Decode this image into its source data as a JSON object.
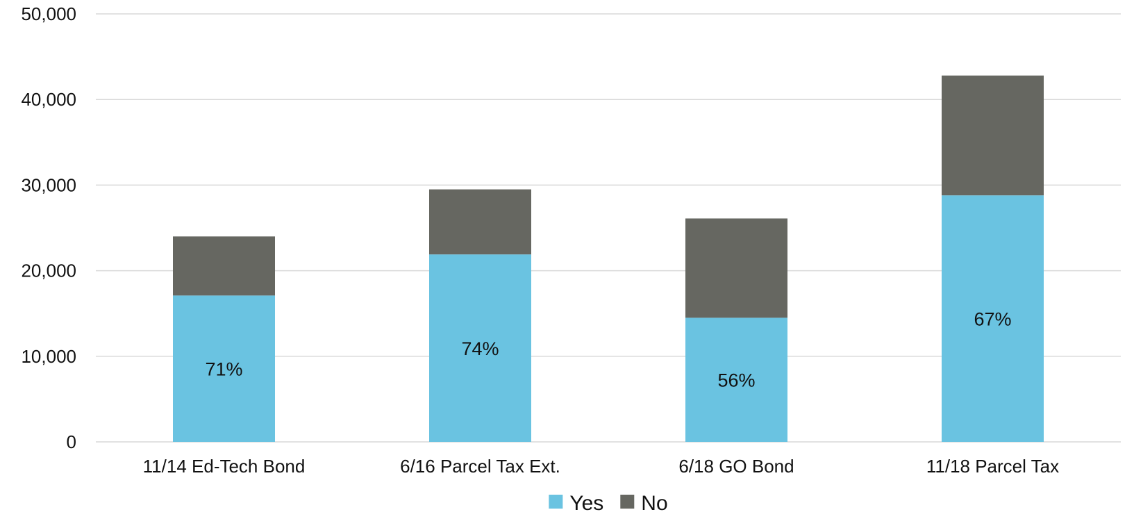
{
  "chart_data": {
    "type": "bar",
    "stacked": true,
    "title": "",
    "xlabel": "",
    "ylabel": "",
    "categories": [
      "11/14 Ed-Tech Bond",
      "6/16 Parcel Tax Ext.",
      "6/18 GO Bond",
      "11/18 Parcel Tax"
    ],
    "series": [
      {
        "name": "Yes",
        "color": "#6ac3e1",
        "values": [
          17100,
          21900,
          14500,
          28800
        ]
      },
      {
        "name": "No",
        "color": "#666761",
        "values": [
          6900,
          7600,
          11600,
          14000
        ]
      }
    ],
    "data_labels": [
      "71%",
      "74%",
      "56%",
      "67%"
    ],
    "ylim": [
      0,
      50000
    ],
    "y_ticks": [
      0,
      10000,
      20000,
      30000,
      40000,
      50000
    ],
    "y_tick_labels": [
      "0",
      "10,000",
      "20,000",
      "30,000",
      "40,000",
      "50,000"
    ],
    "grid": true,
    "legend_position": "bottom"
  }
}
